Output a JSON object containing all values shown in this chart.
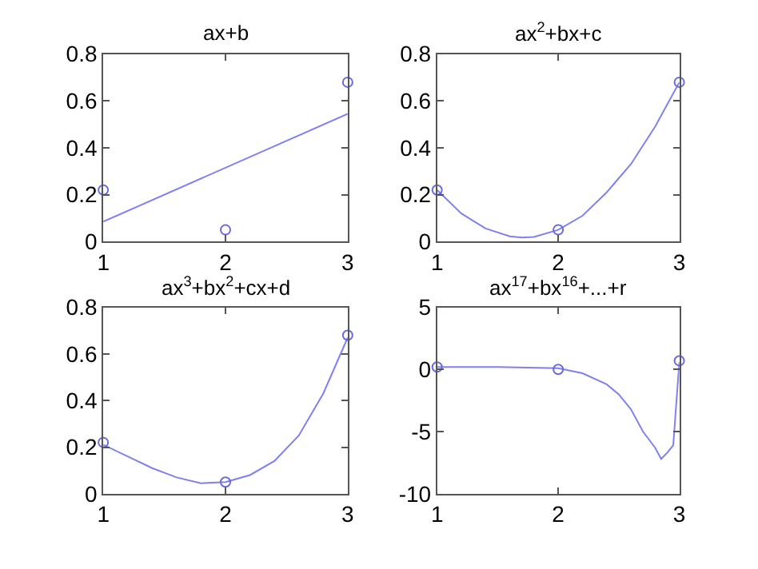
{
  "chart_data": [
    {
      "type": "line",
      "title": "ax+b",
      "xlim": [
        1,
        3
      ],
      "xticks": [
        1,
        2,
        3
      ],
      "ylim": [
        0,
        0.8
      ],
      "yticks": [
        0,
        0.2,
        0.4,
        0.6,
        0.8
      ],
      "series": [
        {
          "color": "#8080f0",
          "x": [
            1,
            3
          ],
          "values": [
            0.085,
            0.545
          ],
          "marker": "none"
        },
        {
          "type": "scatter",
          "color": "#6a6ae0",
          "x": [
            1,
            2,
            3
          ],
          "values": [
            0.22,
            0.05,
            0.68
          ],
          "marker": "circle"
        }
      ]
    },
    {
      "type": "line",
      "title": "ax$^{2}$+bx+c",
      "xlim": [
        1,
        3
      ],
      "xticks": [
        1,
        2,
        3
      ],
      "ylim": [
        0,
        0.8
      ],
      "yticks": [
        0,
        0.2,
        0.4,
        0.6,
        0.8
      ],
      "series": [
        {
          "color": "#8080f0",
          "x": [
            1,
            1.2,
            1.4,
            1.6,
            1.7,
            1.8,
            2,
            2.2,
            2.4,
            2.6,
            2.8,
            3
          ],
          "values": [
            0.22,
            0.12,
            0.056,
            0.022,
            0.017,
            0.02,
            0.05,
            0.11,
            0.21,
            0.33,
            0.49,
            0.68
          ],
          "marker": "none"
        },
        {
          "type": "scatter",
          "color": "#6a6ae0",
          "x": [
            1,
            2,
            3
          ],
          "values": [
            0.22,
            0.05,
            0.68
          ],
          "marker": "circle"
        }
      ]
    },
    {
      "type": "line",
      "title": "ax$^{3}$+bx$^{2}$+cx+d",
      "xlim": [
        1,
        3
      ],
      "xticks": [
        1,
        2,
        3
      ],
      "ylim": [
        0,
        0.8
      ],
      "yticks": [
        0,
        0.2,
        0.4,
        0.6,
        0.8
      ],
      "series": [
        {
          "color": "#8080f0",
          "x": [
            1,
            1.2,
            1.4,
            1.6,
            1.8,
            2,
            2.2,
            2.4,
            2.6,
            2.8,
            3
          ],
          "values": [
            0.21,
            0.16,
            0.11,
            0.07,
            0.045,
            0.05,
            0.08,
            0.14,
            0.25,
            0.43,
            0.67
          ],
          "marker": "none"
        },
        {
          "type": "scatter",
          "color": "#6a6ae0",
          "x": [
            1,
            2,
            3
          ],
          "values": [
            0.22,
            0.05,
            0.68
          ],
          "marker": "circle"
        }
      ]
    },
    {
      "type": "line",
      "title": "ax$^{17}$+bx$^{16}$+...+r",
      "xlim": [
        1,
        3
      ],
      "xticks": [
        1,
        2,
        3
      ],
      "ylim": [
        -10,
        5
      ],
      "yticks": [
        -10,
        -5,
        0,
        5
      ],
      "series": [
        {
          "color": "#8080f0",
          "x": [
            1,
            1.5,
            2,
            2.2,
            2.4,
            2.5,
            2.6,
            2.7,
            2.8,
            2.85,
            2.9,
            2.95,
            3
          ],
          "values": [
            0.2,
            0.2,
            0.1,
            -0.3,
            -1.2,
            -2,
            -3.2,
            -5,
            -6.3,
            -7.2,
            -6.7,
            -6.1,
            0.6
          ],
          "marker": "none"
        },
        {
          "type": "scatter",
          "color": "#6a6ae0",
          "x": [
            1,
            2,
            3
          ],
          "values": [
            0.2,
            0,
            0.7
          ],
          "marker": "circle"
        }
      ]
    }
  ]
}
